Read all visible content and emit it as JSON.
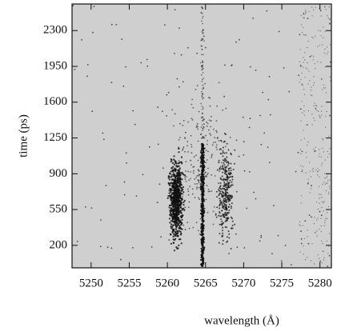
{
  "chart_data": {
    "type": "image",
    "xlabel": "wavelength (Å)",
    "ylabel": "time (ps)",
    "xlim": [
      5247.5,
      5281.5
    ],
    "xticks": [
      5250,
      5255,
      5260,
      5265,
      5270,
      5275,
      5280
    ],
    "ylim": [
      -20,
      2560
    ],
    "yticks": [
      200,
      550,
      900,
      1250,
      1600,
      1950,
      2300
    ]
  }
}
